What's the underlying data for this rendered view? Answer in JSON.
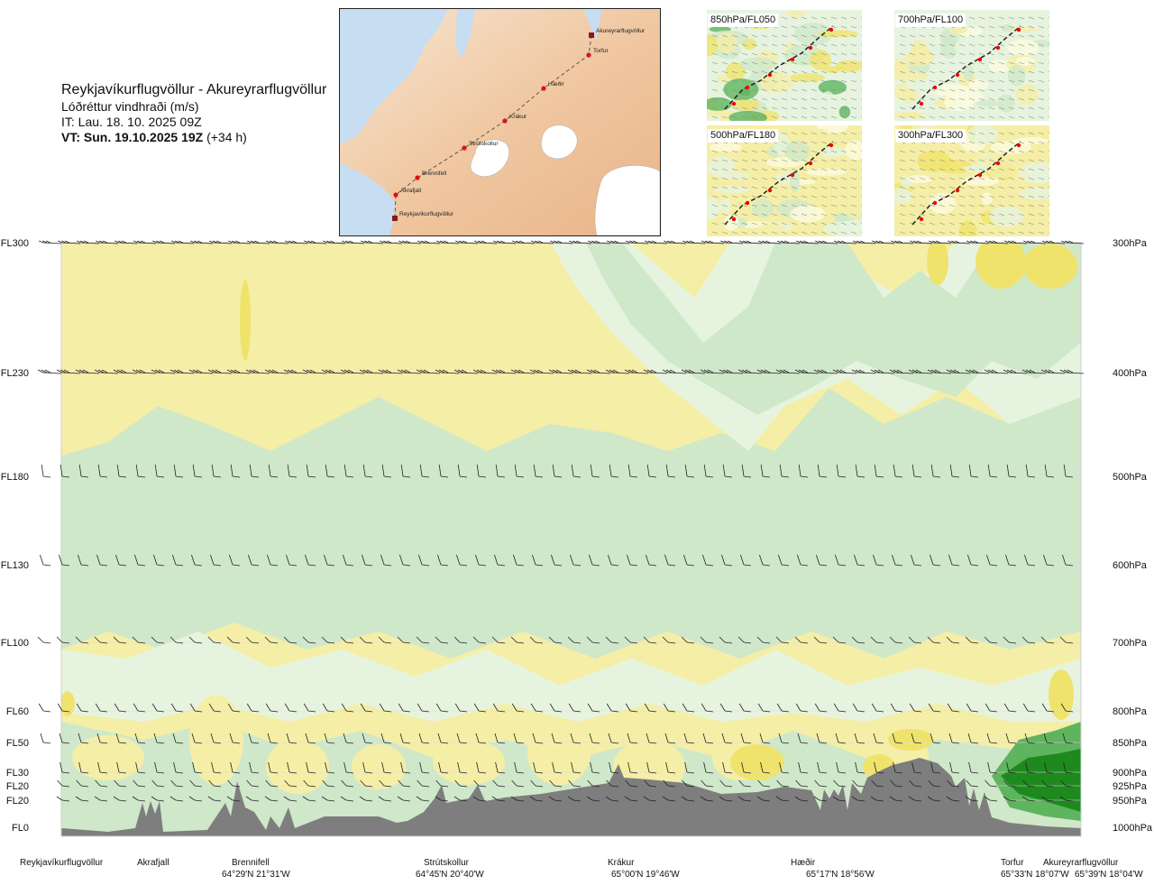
{
  "title": {
    "route": "Reykjavíkurflugvöllur - Akureyrarflugvöllur",
    "param": "Lóðréttur vindhraði (m/s)",
    "it": "IT: Lau. 18. 10. 2025 09Z",
    "vt_bold": "VT: Sun. 19.10.2025 19Z",
    "vt_rest": " (+34 h)"
  },
  "map": {
    "points": [
      {
        "name": "Akureyrarflugvöllur"
      },
      {
        "name": "Torfur"
      },
      {
        "name": "Hæðir"
      },
      {
        "name": "Krákur"
      },
      {
        "name": "Strútskollur"
      },
      {
        "name": "Brennifell"
      },
      {
        "name": "Akrafjall"
      },
      {
        "name": "Reykjavíkurflugvöllur"
      }
    ]
  },
  "minimaps": [
    {
      "label": "850hPa/FL050"
    },
    {
      "label": "700hPa/FL100"
    },
    {
      "label": "500hPa/FL180"
    },
    {
      "label": "300hPa/FL300"
    }
  ],
  "chart_data": {
    "type": "heatmap",
    "x_stations": [
      {
        "name": "Reykjavíkurflugvöllur",
        "coord": ""
      },
      {
        "name": "Akrafjall",
        "coord": ""
      },
      {
        "name": "Brennifell",
        "coord": "64°29'N 21°31'W"
      },
      {
        "name": "Strútskollur",
        "coord": "64°45'N 20°40'W"
      },
      {
        "name": "Krákur",
        "coord": "65°00'N 19°46'W"
      },
      {
        "name": "Hæðir",
        "coord": "65°17'N 18°56'W"
      },
      {
        "name": "Torfur",
        "coord": "65°33'N 18°07'W"
      },
      {
        "name": "Akureyrarflugvöllur",
        "coord": "65°39'N 18°04'W"
      }
    ],
    "y_left_labels": [
      "FL300",
      "FL230",
      "FL180",
      "FL130",
      "FL100",
      "FL60",
      "FL50",
      "FL30",
      "FL20",
      "FL20",
      "FL0"
    ],
    "y_right_labels": [
      "300hPa",
      "400hPa",
      "500hPa",
      "600hPa",
      "700hPa",
      "800hPa",
      "850hPa",
      "900hPa",
      "925hPa",
      "950hPa",
      "1000hPa"
    ],
    "pressure_levels_hpa": [
      300,
      400,
      500,
      600,
      700,
      800,
      850,
      900,
      925,
      950,
      1000
    ],
    "barb_levels_hpa": [
      300,
      400,
      500,
      600,
      700,
      800,
      850,
      900,
      925,
      950
    ],
    "colors": {
      "strong_down": "#f0e36c",
      "weak_down": "#f5eea6",
      "near_zero": "#fdfbe0",
      "weak_up": "#e6f4df",
      "moderate_up": "#cfe8c9",
      "strong_up": "#5fb45f",
      "very_strong_up": "#1e8a1e",
      "terrain": "#7e7e7e"
    }
  }
}
